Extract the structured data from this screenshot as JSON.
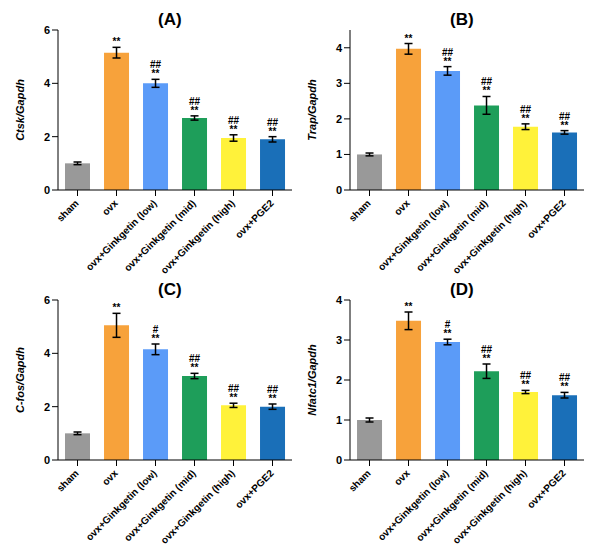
{
  "chart_data": [
    {
      "type": "bar",
      "title": "(A)",
      "y_label": "Ctsk/Gapdh",
      "categories": [
        "sham",
        "ovx",
        "ovx+Ginkgetin (low)",
        "ovx+Ginkgetin (mid)",
        "ovx+Ginkgetin (high)",
        "ovx+PGE2"
      ],
      "values": [
        1.0,
        5.15,
        4.0,
        2.7,
        1.95,
        1.9
      ],
      "errors": [
        0.05,
        0.2,
        0.15,
        0.08,
        0.12,
        0.1
      ],
      "annotations": [
        [],
        [
          "**"
        ],
        [
          "##",
          "**"
        ],
        [
          "##",
          "**"
        ],
        [
          "##",
          "**"
        ],
        [
          "##",
          "**"
        ]
      ],
      "colors": [
        "#999999",
        "#f7a23b",
        "#5b9bf8",
        "#1e9e5a",
        "#fff23a",
        "#1a6fb8"
      ],
      "ylim": [
        0,
        6
      ],
      "yticks": [
        0,
        2,
        4,
        6
      ]
    },
    {
      "type": "bar",
      "title": "(B)",
      "y_label": "Trap/Gapdh",
      "categories": [
        "sham",
        "ovx",
        "ovx+Ginkgetin (low)",
        "ovx+Ginkgetin (mid)",
        "ovx+Ginkgetin (high)",
        "ovx+PGE2"
      ],
      "values": [
        1.0,
        3.97,
        3.35,
        2.38,
        1.78,
        1.62
      ],
      "errors": [
        0.04,
        0.15,
        0.12,
        0.25,
        0.08,
        0.05
      ],
      "annotations": [
        [],
        [
          "**"
        ],
        [
          "##",
          "**"
        ],
        [
          "##",
          "**"
        ],
        [
          "##",
          "**"
        ],
        [
          "##",
          "**"
        ]
      ],
      "colors": [
        "#999999",
        "#f7a23b",
        "#5b9bf8",
        "#1e9e5a",
        "#fff23a",
        "#1a6fb8"
      ],
      "ylim": [
        0,
        4.5
      ],
      "yticks": [
        0,
        1,
        2,
        3,
        4
      ]
    },
    {
      "type": "bar",
      "title": "(C)",
      "y_label": "C-fos/Gapdh",
      "categories": [
        "sham",
        "ovx",
        "ovx+Ginkgetin (low)",
        "ovx+Ginkgetin (mid)",
        "ovx+Ginkgetin (high)",
        "ovx+PGE2"
      ],
      "values": [
        1.0,
        5.05,
        4.15,
        3.15,
        2.05,
        2.0
      ],
      "errors": [
        0.05,
        0.45,
        0.2,
        0.1,
        0.08,
        0.1
      ],
      "annotations": [
        [],
        [
          "**"
        ],
        [
          "#",
          "**"
        ],
        [
          "##",
          "**"
        ],
        [
          "##",
          "**"
        ],
        [
          "##",
          "**"
        ]
      ],
      "colors": [
        "#999999",
        "#f7a23b",
        "#5b9bf8",
        "#1e9e5a",
        "#fff23a",
        "#1a6fb8"
      ],
      "ylim": [
        0,
        6
      ],
      "yticks": [
        0,
        2,
        4,
        6
      ]
    },
    {
      "type": "bar",
      "title": "(D)",
      "y_label": "Nfatc1/Gapdh",
      "categories": [
        "sham",
        "ovx",
        "ovx+Ginkgetin (low)",
        "ovx+Ginkgetin (mid)",
        "ovx+Ginkgetin (high)",
        "ovx+PGE2"
      ],
      "values": [
        1.0,
        3.48,
        2.95,
        2.22,
        1.7,
        1.62
      ],
      "errors": [
        0.05,
        0.22,
        0.07,
        0.18,
        0.04,
        0.07
      ],
      "annotations": [
        [],
        [
          "**"
        ],
        [
          "#",
          "**"
        ],
        [
          "##",
          "**"
        ],
        [
          "##",
          "**"
        ],
        [
          "##",
          "**"
        ]
      ],
      "colors": [
        "#999999",
        "#f7a23b",
        "#5b9bf8",
        "#1e9e5a",
        "#fff23a",
        "#1a6fb8"
      ],
      "ylim": [
        0,
        4
      ],
      "yticks": [
        0,
        1,
        2,
        3,
        4
      ]
    }
  ]
}
